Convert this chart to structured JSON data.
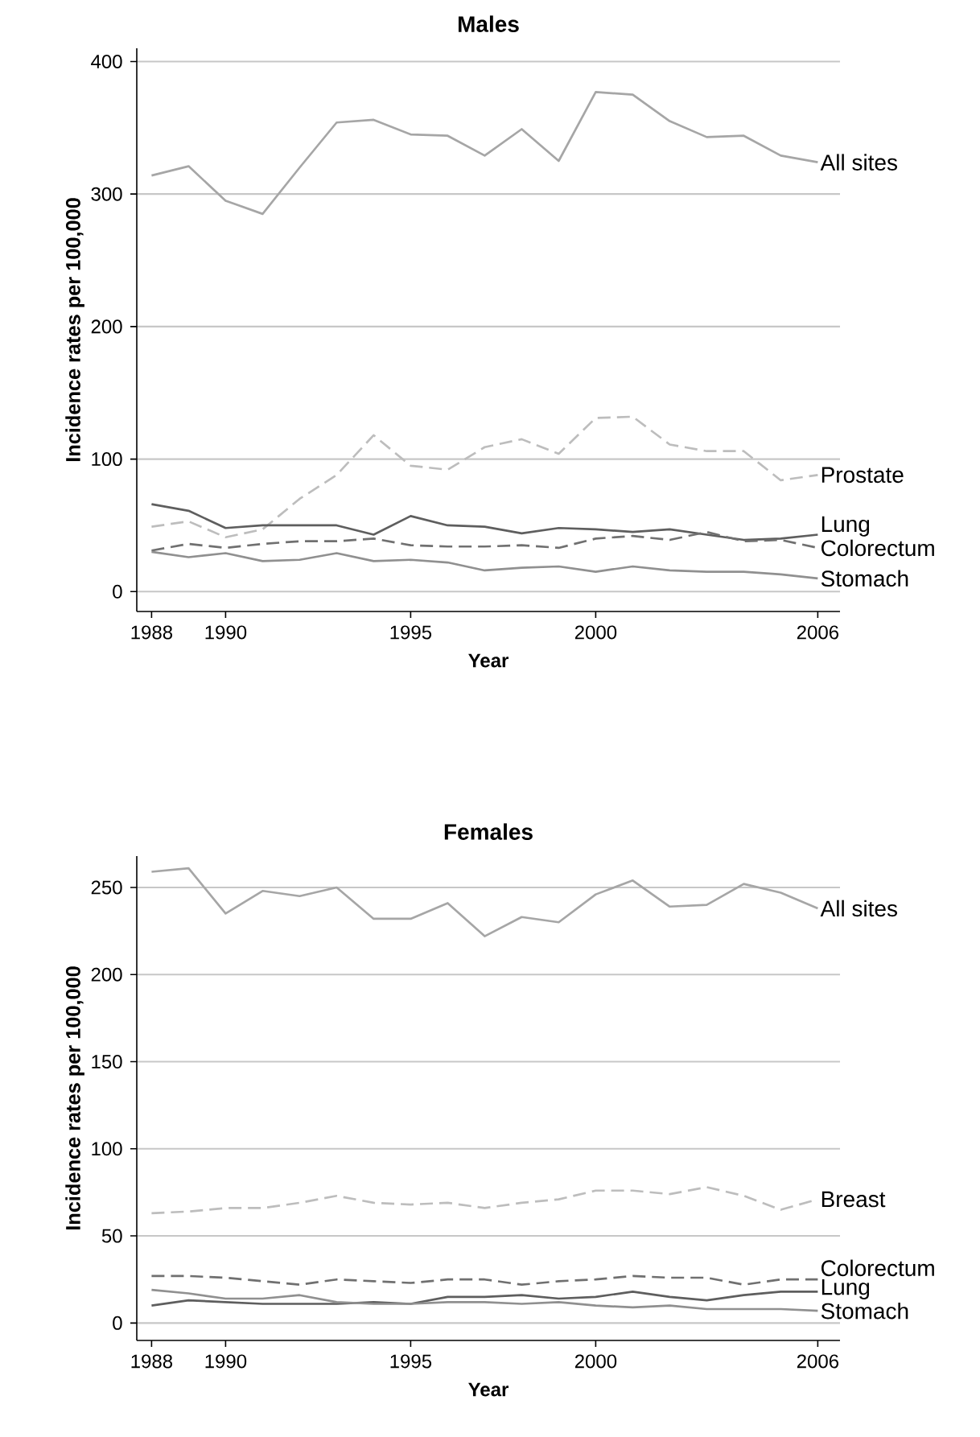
{
  "chart_data": [
    {
      "type": "line",
      "title": "Males",
      "xlabel": "Year",
      "ylabel": "Incidence rates per 100,000",
      "x": [
        1988,
        1989,
        1990,
        1991,
        1992,
        1993,
        1994,
        1995,
        1996,
        1997,
        1998,
        1999,
        2000,
        2001,
        2002,
        2003,
        2004,
        2005,
        2006
      ],
      "xlim": [
        1987.6,
        2006.6
      ],
      "xticks": [
        1988,
        1990,
        1995,
        2000,
        2006
      ],
      "ylim": [
        -15,
        410
      ],
      "yticks": [
        0,
        100,
        200,
        300,
        400
      ],
      "grid": "y",
      "legend": false,
      "series": [
        {
          "name": "All sites",
          "color": "#a6a6a6",
          "line_style": "solid",
          "values": [
            314,
            321,
            295,
            285,
            320,
            354,
            356,
            345,
            344,
            329,
            349,
            325,
            377,
            375,
            355,
            343,
            344,
            329,
            324
          ]
        },
        {
          "name": "Prostate",
          "color": "#bdbdbd",
          "line_style": "dashed",
          "values": [
            49,
            53,
            41,
            47,
            70,
            88,
            118,
            95,
            92,
            109,
            115,
            104,
            131,
            132,
            111,
            106,
            106,
            84,
            88
          ]
        },
        {
          "name": "Lung",
          "color": "#5e5e5e",
          "line_style": "solid",
          "values": [
            66,
            61,
            48,
            50,
            50,
            50,
            43,
            57,
            50,
            49,
            44,
            48,
            47,
            45,
            47,
            43,
            39,
            40,
            43
          ]
        },
        {
          "name": "Colorectum",
          "color": "#707070",
          "line_style": "dashed",
          "values": [
            31,
            36,
            33,
            36,
            38,
            38,
            40,
            35,
            34,
            34,
            35,
            33,
            40,
            42,
            39,
            45,
            38,
            39,
            33
          ]
        },
        {
          "name": "Stomach",
          "color": "#909090",
          "line_style": "solid",
          "values": [
            30,
            26,
            29,
            23,
            24,
            29,
            23,
            24,
            22,
            16,
            18,
            19,
            15,
            19,
            16,
            15,
            15,
            13,
            10
          ]
        }
      ]
    },
    {
      "type": "line",
      "title": "Females",
      "xlabel": "Year",
      "ylabel": "Incidence rates per 100,000",
      "x": [
        1988,
        1989,
        1990,
        1991,
        1992,
        1993,
        1994,
        1995,
        1996,
        1997,
        1998,
        1999,
        2000,
        2001,
        2002,
        2003,
        2004,
        2005,
        2006
      ],
      "xlim": [
        1987.6,
        2006.6
      ],
      "xticks": [
        1988,
        1990,
        1995,
        2000,
        2006
      ],
      "ylim": [
        -10,
        268
      ],
      "yticks": [
        0,
        50,
        100,
        150,
        200,
        250
      ],
      "grid": "y",
      "legend": false,
      "series": [
        {
          "name": "All sites",
          "color": "#a6a6a6",
          "line_style": "solid",
          "values": [
            259,
            261,
            235,
            248,
            245,
            250,
            232,
            232,
            241,
            222,
            233,
            230,
            246,
            254,
            239,
            240,
            252,
            247,
            238
          ]
        },
        {
          "name": "Breast",
          "color": "#bdbdbd",
          "line_style": "dashed",
          "values": [
            63,
            64,
            66,
            66,
            69,
            73,
            69,
            68,
            69,
            66,
            69,
            71,
            76,
            76,
            74,
            78,
            73,
            65,
            71
          ]
        },
        {
          "name": "Colorectum",
          "color": "#707070",
          "line_style": "dashed",
          "values": [
            27,
            27,
            26,
            24,
            22,
            25,
            24,
            23,
            25,
            25,
            22,
            24,
            25,
            27,
            26,
            26,
            22,
            25,
            25
          ]
        },
        {
          "name": "Lung",
          "color": "#5e5e5e",
          "line_style": "solid",
          "values": [
            10,
            13,
            12,
            11,
            11,
            11,
            12,
            11,
            15,
            15,
            16,
            14,
            15,
            18,
            15,
            13,
            16,
            18,
            18
          ]
        },
        {
          "name": "Stomach",
          "color": "#909090",
          "line_style": "solid",
          "values": [
            19,
            17,
            14,
            14,
            16,
            12,
            11,
            11,
            12,
            12,
            11,
            12,
            10,
            9,
            10,
            8,
            8,
            8,
            7
          ]
        }
      ]
    }
  ]
}
